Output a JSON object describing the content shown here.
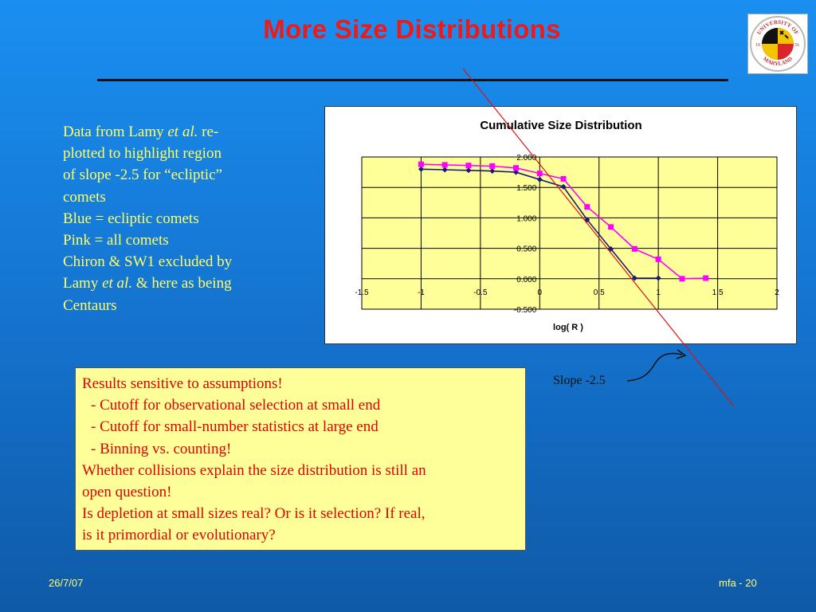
{
  "slide": {
    "title": "More Size Distributions",
    "footer_date": "26/7/07",
    "footer_page": "mfa - 20"
  },
  "logo": {
    "icon": "university-of-maryland-seal-icon",
    "text_top": "UNIVERSITY OF",
    "text_bottom": "MARYLAND",
    "year_left": "18",
    "year_right": "56",
    "colors": {
      "red": "#d8262c",
      "yellow": "#f2c500",
      "black": "#111111"
    }
  },
  "left_text": {
    "line1_a": "Data from Lamy ",
    "line1_b": "et al.",
    "line1_c": " re-",
    "line2": "plotted to highlight region",
    "line3": "of slope -2.5 for “ecliptic”",
    "line4": "comets",
    "line5": "Blue = ecliptic comets",
    "line6": "Pink = all comets",
    "line7": "Chiron & SW1 excluded by",
    "line8_a": "Lamy ",
    "line8_b": "et al.",
    "line8_c": " & here as being",
    "line9": "Centaurs"
  },
  "results": {
    "line1": "Results sensitive to assumptions!",
    "line2": "-  Cutoff for observational selection at small end",
    "line3": "-  Cutoff for small-number statistics at large end",
    "line4": "-  Binning vs. counting!",
    "line5": "Whether collisions explain the size distribution is still an",
    "line6": "open question!",
    "line7": "Is depletion at small sizes real?  Or is it selection?  If real,",
    "line8": "is it primordial or evolutionary?"
  },
  "annotation": {
    "slope_label": "Slope -2.5",
    "slope_line_color": "#e01010"
  },
  "chart_data": {
    "type": "line",
    "title": "Cumulative Size Distribution",
    "xlabel": "log( R )",
    "ylabel": "",
    "xlim": [
      -1.5,
      2
    ],
    "ylim": [
      -0.5,
      2.0
    ],
    "x_ticks": [
      "-1.5",
      "-1",
      "-0.5",
      "0",
      "0.5",
      "1",
      "1.5",
      "2"
    ],
    "y_ticks": [
      "-0.500",
      "0.000",
      "0.500",
      "1.000",
      "1.500",
      "2.000"
    ],
    "grid": true,
    "plot_background": "#ffff99",
    "series": [
      {
        "color": "#1a1a7a",
        "marker": "diamond",
        "x": [
          -1.0,
          -0.8,
          -0.6,
          -0.4,
          -0.2,
          0.0,
          0.2,
          0.4,
          0.6,
          0.8,
          1.0
        ],
        "y": [
          1.8,
          1.79,
          1.78,
          1.77,
          1.75,
          1.63,
          1.51,
          0.97,
          0.49,
          0.01,
          0.01
        ]
      },
      {
        "color": "#ff00ff",
        "marker": "square",
        "x": [
          -1.0,
          -0.8,
          -0.6,
          -0.4,
          -0.2,
          0.0,
          0.2,
          0.4,
          0.6,
          0.8,
          1.0,
          1.2,
          1.4
        ],
        "y": [
          1.88,
          1.87,
          1.86,
          1.85,
          1.82,
          1.73,
          1.64,
          1.18,
          0.85,
          0.49,
          0.32,
          0.0,
          0.01
        ]
      }
    ]
  }
}
